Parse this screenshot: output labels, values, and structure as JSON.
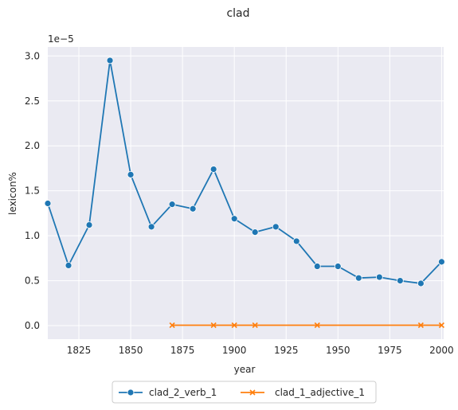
{
  "chart_data": {
    "type": "line",
    "title": "clad",
    "xlabel": "year",
    "ylabel": "lexicon%",
    "y_offset_label": "1e−5",
    "xlim": [
      1810,
      2001
    ],
    "ylim": [
      -0.15,
      3.1
    ],
    "y_multiplier": 1e-05,
    "xticks": [
      1825,
      1850,
      1875,
      1900,
      1925,
      1950,
      1975,
      2000
    ],
    "xtick_labels": [
      "1825",
      "1850",
      "1875",
      "1900",
      "1925",
      "1950",
      "1975",
      "2000"
    ],
    "yticks": [
      0.0,
      0.5,
      1.0,
      1.5,
      2.0,
      2.5,
      3.0
    ],
    "ytick_labels": [
      "0.0",
      "0.5",
      "1.0",
      "1.5",
      "2.0",
      "2.5",
      "3.0"
    ],
    "grid": true,
    "legend_position": "bottom-center-outside",
    "series": [
      {
        "name": "clad_2_verb_1",
        "color": "#1f77b4",
        "marker": "circle",
        "x": [
          1810,
          1820,
          1830,
          1840,
          1850,
          1860,
          1870,
          1880,
          1890,
          1900,
          1910,
          1920,
          1930,
          1940,
          1950,
          1960,
          1970,
          1980,
          1990,
          2000
        ],
        "y": [
          1.36,
          0.67,
          1.12,
          2.95,
          1.68,
          1.1,
          1.35,
          1.3,
          1.74,
          1.19,
          1.04,
          1.1,
          0.94,
          0.66,
          0.66,
          0.53,
          0.54,
          0.5,
          0.47,
          0.71
        ]
      },
      {
        "name": "clad_1_adjective_1",
        "color": "#ff7f0e",
        "marker": "x",
        "x": [
          1870,
          1890,
          1900,
          1910,
          1940,
          1990,
          2000
        ],
        "y": [
          0.005,
          0.005,
          0.005,
          0.005,
          0.005,
          0.005,
          0.005
        ]
      }
    ]
  }
}
